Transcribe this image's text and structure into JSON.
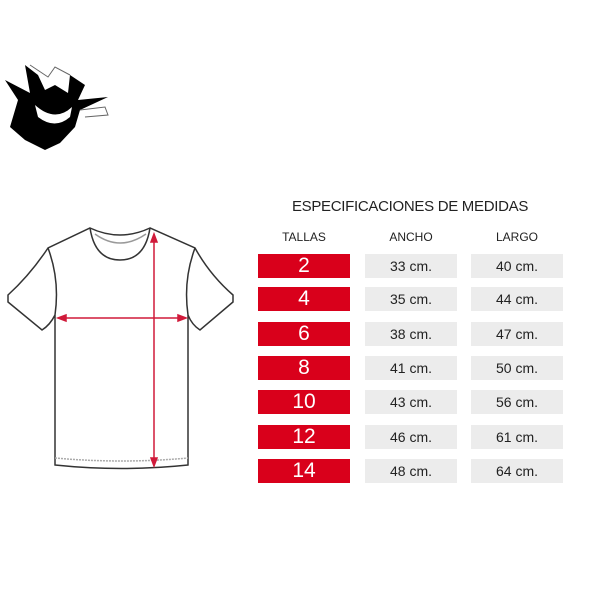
{
  "title": "ESPECIFICACIONES DE MEDIDAS",
  "headers": {
    "tallas": "TALLAS",
    "ancho": "ANCHO",
    "largo": "LARGO"
  },
  "rows": [
    {
      "talla": "2",
      "ancho": "33 cm.",
      "largo": "40 cm."
    },
    {
      "talla": "4",
      "ancho": "35 cm.",
      "largo": "44 cm."
    },
    {
      "talla": "6",
      "ancho": "38 cm.",
      "largo": "47 cm."
    },
    {
      "talla": "8",
      "ancho": "41 cm.",
      "largo": "50 cm."
    },
    {
      "talla": "10",
      "ancho": "43 cm.",
      "largo": "56 cm."
    },
    {
      "talla": "12",
      "ancho": "46 cm.",
      "largo": "61 cm."
    },
    {
      "talla": "14",
      "ancho": "48 cm.",
      "largo": "64 cm."
    }
  ],
  "colors": {
    "accent": "#d9001b",
    "cell_bg": "#ececec",
    "arrow": "#d01a3a"
  },
  "icons": {
    "logo": "ghost-face-logo",
    "diagram": "tshirt-measurement-diagram"
  }
}
